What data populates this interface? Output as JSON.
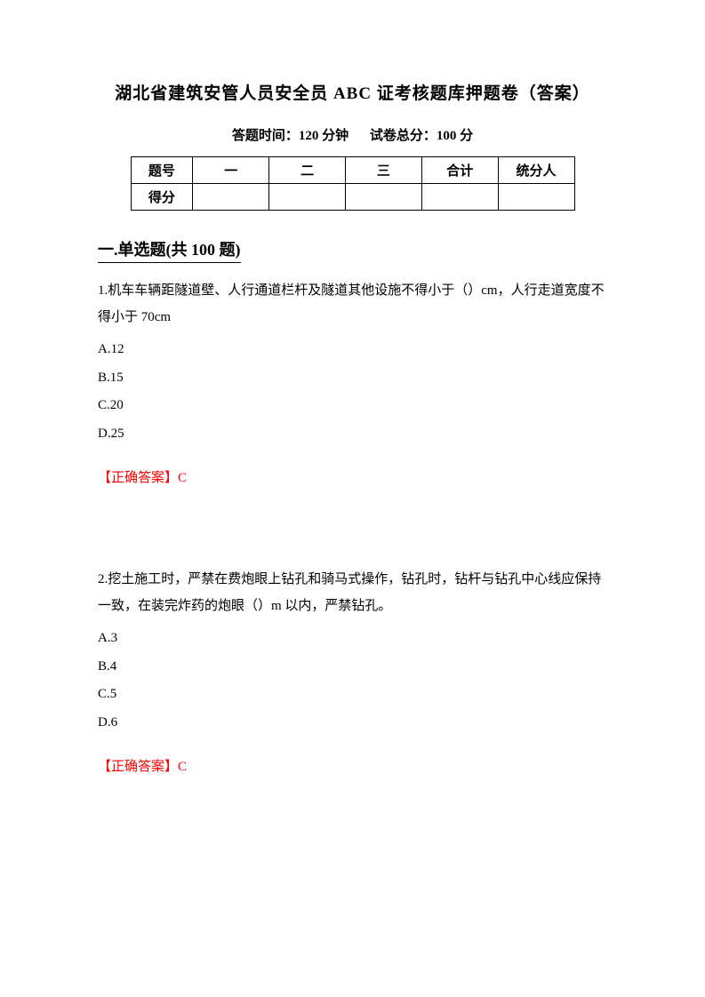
{
  "title": "湖北省建筑安管人员安全员 ABC 证考核题库押题卷（答案）",
  "subtitle": {
    "time_label": "答题时间：120 分钟",
    "score_label": "试卷总分：100 分"
  },
  "score_table": {
    "row1": [
      "题号",
      "一",
      "二",
      "三",
      "合计",
      "统分人"
    ],
    "row2_label": "得分"
  },
  "section_heading": "一.单选题(共 100 题)",
  "q1": {
    "text": "1.机车车辆距隧道壁、人行通道栏杆及隧道其他设施不得小于（）cm，人行走道宽度不得小于 70cm",
    "optA": "A.12",
    "optB": "B.15",
    "optC": "C.20",
    "optD": "D.25",
    "answer": "【正确答案】C"
  },
  "q2": {
    "text": "2.挖土施工时，严禁在费炮眼上钻孔和骑马式操作，钻孔时，钻杆与钻孔中心线应保持一致，在装完炸药的炮眼（）m 以内，严禁钻孔。",
    "optA": "A.3",
    "optB": "B.4",
    "optC": "C.5",
    "optD": "D.6",
    "answer": "【正确答案】C"
  },
  "colors": {
    "text": "#000000",
    "answer": "#ff0000",
    "background": "#ffffff",
    "border": "#000000"
  },
  "typography": {
    "title_fontsize": 19,
    "body_fontsize": 15,
    "section_fontsize": 18,
    "font_family": "SimSun"
  }
}
